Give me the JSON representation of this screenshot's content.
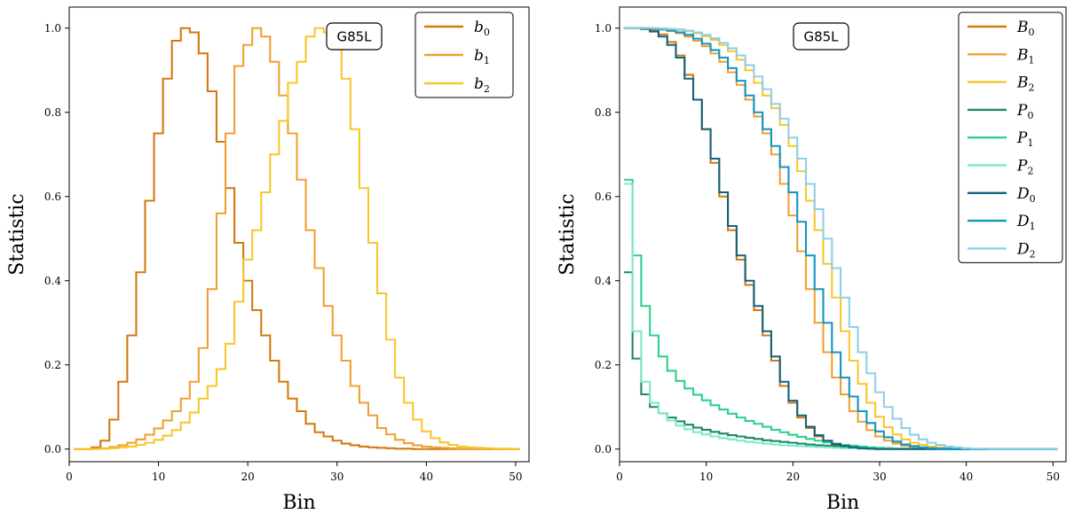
{
  "chart_data": [
    {
      "type": "line",
      "step": true,
      "xlabel": "Bin",
      "ylabel": "Statistic",
      "xlim": [
        0,
        51.5
      ],
      "ylim": [
        -0.03,
        1.05
      ],
      "xticks": [
        0,
        10,
        20,
        30,
        40,
        50
      ],
      "yticks": [
        0.0,
        0.2,
        0.4,
        0.6,
        0.8,
        1.0
      ],
      "badge": "G85L",
      "legend_position": "top-right",
      "x": [
        1,
        2,
        3,
        4,
        5,
        6,
        7,
        8,
        9,
        10,
        11,
        12,
        13,
        14,
        15,
        16,
        17,
        18,
        19,
        20,
        21,
        22,
        23,
        24,
        25,
        26,
        27,
        28,
        29,
        30,
        31,
        32,
        33,
        34,
        35,
        36,
        37,
        38,
        39,
        40,
        41,
        42,
        43,
        44,
        45,
        46,
        47,
        48,
        49,
        50
      ],
      "series": [
        {
          "name": "b",
          "sub": "0",
          "color": "#d4790e",
          "values": [
            0.0,
            0.0,
            0.004,
            0.02,
            0.07,
            0.16,
            0.27,
            0.42,
            0.59,
            0.75,
            0.88,
            0.97,
            1.0,
            0.99,
            0.94,
            0.85,
            0.73,
            0.62,
            0.49,
            0.4,
            0.33,
            0.27,
            0.21,
            0.16,
            0.12,
            0.09,
            0.06,
            0.04,
            0.03,
            0.02,
            0.013,
            0.009,
            0.006,
            0.004,
            0.003,
            0.002,
            0.001,
            0.001,
            0.0,
            0.0,
            0.0,
            0.0,
            0.0,
            0.0,
            0.0,
            0.0,
            0.0,
            0.0,
            0.0,
            0.0
          ]
        },
        {
          "name": "b",
          "sub": "1",
          "color": "#f0a030",
          "values": [
            0.0,
            0.0,
            0.001,
            0.002,
            0.005,
            0.009,
            0.015,
            0.023,
            0.034,
            0.049,
            0.068,
            0.09,
            0.12,
            0.16,
            0.24,
            0.38,
            0.56,
            0.75,
            0.91,
            0.96,
            1.0,
            0.98,
            0.92,
            0.84,
            0.75,
            0.64,
            0.52,
            0.43,
            0.34,
            0.27,
            0.21,
            0.15,
            0.11,
            0.08,
            0.05,
            0.035,
            0.022,
            0.014,
            0.009,
            0.006,
            0.004,
            0.003,
            0.002,
            0.001,
            0.001,
            0.0,
            0.0,
            0.0,
            0.0,
            0.0
          ]
        },
        {
          "name": "b",
          "sub": "2",
          "color": "#f8c72b",
          "values": [
            0.0,
            0.0,
            0.0,
            0.001,
            0.002,
            0.004,
            0.006,
            0.01,
            0.015,
            0.022,
            0.032,
            0.045,
            0.063,
            0.087,
            0.12,
            0.15,
            0.19,
            0.25,
            0.35,
            0.45,
            0.52,
            0.61,
            0.7,
            0.78,
            0.87,
            0.92,
            0.98,
            1.0,
            0.99,
            0.95,
            0.88,
            0.76,
            0.62,
            0.49,
            0.37,
            0.26,
            0.17,
            0.11,
            0.07,
            0.042,
            0.026,
            0.016,
            0.01,
            0.006,
            0.004,
            0.003,
            0.002,
            0.001,
            0.001,
            0.0
          ]
        }
      ]
    },
    {
      "type": "line",
      "step": true,
      "xlabel": "Bin",
      "ylabel": "Statistic",
      "xlim": [
        0,
        51.5
      ],
      "ylim": [
        -0.03,
        1.05
      ],
      "xticks": [
        0,
        10,
        20,
        30,
        40,
        50
      ],
      "yticks": [
        0.0,
        0.2,
        0.4,
        0.6,
        0.8,
        1.0
      ],
      "badge": "G85L",
      "legend_position": "top-right",
      "x": [
        1,
        2,
        3,
        4,
        5,
        6,
        7,
        8,
        9,
        10,
        11,
        12,
        13,
        14,
        15,
        16,
        17,
        18,
        19,
        20,
        21,
        22,
        23,
        24,
        25,
        26,
        27,
        28,
        29,
        30,
        31,
        32,
        33,
        34,
        35,
        36,
        37,
        38,
        39,
        40,
        41,
        42,
        43,
        44,
        45,
        46,
        47,
        48,
        49,
        50
      ],
      "series": [
        {
          "name": "B",
          "sub": "0",
          "color": "#d4790e",
          "values": [
            1.0,
            1.0,
            1.0,
            0.995,
            0.985,
            0.967,
            0.935,
            0.889,
            0.83,
            0.76,
            0.68,
            0.6,
            0.52,
            0.45,
            0.39,
            0.33,
            0.27,
            0.21,
            0.15,
            0.11,
            0.075,
            0.05,
            0.03,
            0.018,
            0.01,
            0.006,
            0.003,
            0.002,
            0.001,
            0.0,
            0.0,
            0.0,
            0.0,
            0.0,
            0.0,
            0.0,
            0.0,
            0.0,
            0.0,
            0.0,
            0.0,
            0.0,
            0.0,
            0.0,
            0.0,
            0.0,
            0.0,
            0.0,
            0.0,
            0.0
          ]
        },
        {
          "name": "B",
          "sub": "1",
          "color": "#f0a030",
          "values": [
            1.0,
            1.0,
            1.0,
            0.999,
            0.997,
            0.993,
            0.988,
            0.98,
            0.97,
            0.957,
            0.94,
            0.92,
            0.895,
            0.865,
            0.83,
            0.79,
            0.75,
            0.7,
            0.63,
            0.555,
            0.47,
            0.38,
            0.3,
            0.23,
            0.17,
            0.13,
            0.09,
            0.065,
            0.045,
            0.03,
            0.02,
            0.013,
            0.008,
            0.005,
            0.003,
            0.002,
            0.001,
            0.0,
            0.0,
            0.0,
            0.0,
            0.0,
            0.0,
            0.0,
            0.0,
            0.0,
            0.0,
            0.0,
            0.0,
            0.0
          ]
        },
        {
          "name": "B",
          "sub": "2",
          "color": "#f8c72b",
          "values": [
            1.0,
            1.0,
            1.0,
            1.0,
            0.999,
            0.998,
            0.996,
            0.993,
            0.988,
            0.981,
            0.972,
            0.96,
            0.945,
            0.925,
            0.9,
            0.87,
            0.84,
            0.81,
            0.77,
            0.72,
            0.66,
            0.59,
            0.52,
            0.44,
            0.36,
            0.28,
            0.21,
            0.155,
            0.11,
            0.077,
            0.052,
            0.035,
            0.023,
            0.015,
            0.01,
            0.006,
            0.004,
            0.002,
            0.001,
            0.001,
            0.0,
            0.0,
            0.0,
            0.0,
            0.0,
            0.0,
            0.0,
            0.0,
            0.0,
            0.0
          ]
        },
        {
          "name": "P",
          "sub": "0",
          "color": "#1f8a5b",
          "values": [
            0.42,
            0.215,
            0.13,
            0.1,
            0.085,
            0.075,
            0.066,
            0.058,
            0.051,
            0.046,
            0.041,
            0.037,
            0.033,
            0.03,
            0.027,
            0.024,
            0.021,
            0.019,
            0.017,
            0.015,
            0.013,
            0.011,
            0.009,
            0.008,
            0.007,
            0.006,
            0.005,
            0.004,
            0.003,
            0.002,
            0.002,
            0.001,
            0.001,
            0.001,
            0.0,
            0.0,
            0.0,
            0.0,
            0.0,
            0.0,
            0.0,
            0.0,
            0.0,
            0.0,
            0.0,
            0.0,
            0.0,
            0.0,
            0.0,
            0.0
          ]
        },
        {
          "name": "P",
          "sub": "1",
          "color": "#2fcf8c",
          "values": [
            0.64,
            0.46,
            0.34,
            0.27,
            0.22,
            0.186,
            0.162,
            0.144,
            0.129,
            0.116,
            0.104,
            0.094,
            0.084,
            0.075,
            0.067,
            0.06,
            0.053,
            0.046,
            0.04,
            0.034,
            0.029,
            0.024,
            0.02,
            0.016,
            0.013,
            0.01,
            0.008,
            0.006,
            0.004,
            0.003,
            0.002,
            0.001,
            0.001,
            0.0,
            0.0,
            0.0,
            0.0,
            0.0,
            0.0,
            0.0,
            0.0,
            0.0,
            0.0,
            0.0,
            0.0,
            0.0,
            0.0,
            0.0,
            0.0,
            0.0
          ]
        },
        {
          "name": "P",
          "sub": "2",
          "color": "#7ee8cf",
          "values": [
            0.63,
            0.28,
            0.16,
            0.11,
            0.085,
            0.068,
            0.056,
            0.047,
            0.04,
            0.035,
            0.03,
            0.026,
            0.023,
            0.02,
            0.017,
            0.015,
            0.013,
            0.011,
            0.009,
            0.008,
            0.007,
            0.006,
            0.005,
            0.004,
            0.003,
            0.002,
            0.002,
            0.001,
            0.001,
            0.0,
            0.0,
            0.0,
            0.0,
            0.0,
            0.0,
            0.0,
            0.0,
            0.0,
            0.0,
            0.0,
            0.0,
            0.0,
            0.0,
            0.0,
            0.0,
            0.0,
            0.0,
            0.0,
            0.0,
            0.0
          ]
        },
        {
          "name": "D",
          "sub": "0",
          "color": "#13637e",
          "values": [
            1.0,
            1.0,
            0.998,
            0.992,
            0.98,
            0.96,
            0.93,
            0.88,
            0.83,
            0.76,
            0.69,
            0.61,
            0.53,
            0.46,
            0.4,
            0.34,
            0.28,
            0.22,
            0.16,
            0.115,
            0.08,
            0.053,
            0.033,
            0.02,
            0.012,
            0.007,
            0.004,
            0.002,
            0.001,
            0.0,
            0.0,
            0.0,
            0.0,
            0.0,
            0.0,
            0.0,
            0.0,
            0.0,
            0.0,
            0.0,
            0.0,
            0.0,
            0.0,
            0.0,
            0.0,
            0.0,
            0.0,
            0.0,
            0.0,
            0.0
          ]
        },
        {
          "name": "D",
          "sub": "1",
          "color": "#1196c3",
          "values": [
            1.0,
            1.0,
            1.0,
            0.999,
            0.997,
            0.994,
            0.99,
            0.984,
            0.975,
            0.963,
            0.948,
            0.93,
            0.905,
            0.875,
            0.84,
            0.8,
            0.76,
            0.72,
            0.67,
            0.61,
            0.54,
            0.46,
            0.38,
            0.3,
            0.23,
            0.17,
            0.125,
            0.09,
            0.062,
            0.042,
            0.028,
            0.018,
            0.011,
            0.007,
            0.004,
            0.002,
            0.001,
            0.001,
            0.0,
            0.0,
            0.0,
            0.0,
            0.0,
            0.0,
            0.0,
            0.0,
            0.0,
            0.0,
            0.0,
            0.0
          ]
        },
        {
          "name": "D",
          "sub": "2",
          "color": "#8ecfe8",
          "values": [
            1.0,
            1.0,
            1.0,
            1.0,
            0.999,
            0.998,
            0.997,
            0.994,
            0.99,
            0.984,
            0.976,
            0.965,
            0.952,
            0.935,
            0.912,
            0.885,
            0.855,
            0.82,
            0.785,
            0.74,
            0.69,
            0.63,
            0.57,
            0.5,
            0.43,
            0.36,
            0.29,
            0.23,
            0.18,
            0.135,
            0.1,
            0.072,
            0.05,
            0.034,
            0.023,
            0.015,
            0.01,
            0.006,
            0.004,
            0.002,
            0.001,
            0.001,
            0.0,
            0.0,
            0.0,
            0.0,
            0.0,
            0.0,
            0.0,
            0.0
          ]
        }
      ]
    }
  ]
}
